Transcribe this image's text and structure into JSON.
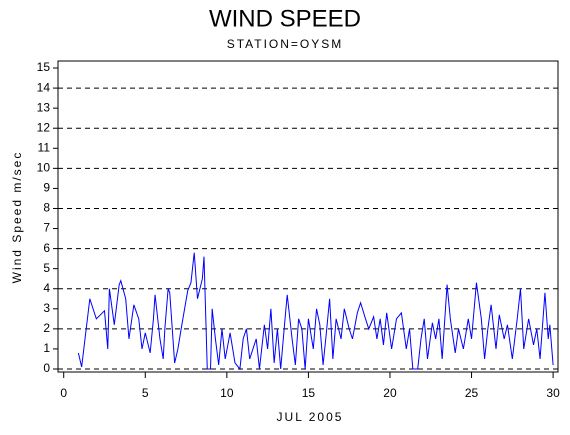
{
  "chart_data": {
    "type": "line",
    "title": "WIND SPEED",
    "subtitle": "STATION=OYSM",
    "x_label": "JUL 2005",
    "y_label": "Wind Speed m/sec",
    "xlim": [
      -0.35,
      30.3
    ],
    "ylim": [
      -0.15,
      15.35
    ],
    "xticks": [
      0,
      5,
      10,
      15,
      20,
      25,
      30
    ],
    "yticks": [
      0,
      1,
      2,
      3,
      4,
      5,
      6,
      7,
      8,
      9,
      10,
      11,
      12,
      13,
      14,
      15
    ],
    "ygrid": [
      0,
      2,
      4,
      6,
      8,
      10,
      12,
      14
    ],
    "series": [
      {
        "color": "#0000ff",
        "x": [
          0.9,
          1.1,
          1.6,
          2,
          2.5,
          2.7,
          2.8,
          3.1,
          3.4,
          3.5,
          3.8,
          4,
          4.3,
          4.6,
          4.8,
          5,
          5.3,
          5.5,
          5.6,
          5.9,
          6.1,
          6.2,
          6.4,
          6.5,
          6.8,
          7,
          7.2,
          7.6,
          7.8,
          8,
          8.2,
          8.5,
          8.6,
          8.8,
          9,
          9.1,
          9.3,
          9.5,
          9.7,
          9.9,
          10.2,
          10.5,
          10.8,
          11,
          11.2,
          11.4,
          11.8,
          12,
          12.3,
          12.5,
          12.7,
          12.9,
          13.1,
          13.3,
          13.6,
          13.7,
          14,
          14.2,
          14.4,
          14.6,
          14.8,
          15,
          15.3,
          15.5,
          15.7,
          15.9,
          16.1,
          16.3,
          16.5,
          16.7,
          17,
          17.2,
          17.5,
          17.7,
          18,
          18.2,
          18.5,
          18.7,
          19,
          19.2,
          19.4,
          19.6,
          19.8,
          20.1,
          20.4,
          20.7,
          21,
          21.2,
          21.4,
          21.7,
          21.9,
          22.1,
          22.3,
          22.6,
          22.8,
          23,
          23.2,
          23.5,
          23.7,
          24,
          24.2,
          24.5,
          24.8,
          25,
          25.3,
          25.6,
          25.8,
          26,
          26.2,
          26.5,
          26.7,
          27,
          27.2,
          27.5,
          27.8,
          28,
          28.2,
          28.5,
          28.8,
          29,
          29.2,
          29.5,
          29.7,
          29.8,
          30
        ],
        "values": [
          0.8,
          0.1,
          3.5,
          2.5,
          2.9,
          1,
          4,
          2.2,
          4.2,
          4.4,
          3.5,
          1.5,
          3.2,
          2.5,
          1,
          1.8,
          0.8,
          2.5,
          3.7,
          1.5,
          0.5,
          2,
          4,
          3.8,
          0.3,
          1,
          2,
          3.9,
          4.3,
          5.8,
          3.5,
          4.5,
          5.6,
          0,
          0,
          3,
          1.5,
          0.2,
          2,
          0.5,
          1.8,
          0.3,
          0,
          1.5,
          2,
          0.5,
          1.5,
          0,
          2.2,
          1,
          3,
          0.3,
          2,
          0,
          2.8,
          3.7,
          1.5,
          0.2,
          2.5,
          2,
          0,
          2.5,
          1,
          3,
          2.2,
          0.2,
          1.8,
          3.5,
          0.5,
          2.5,
          1.5,
          3,
          2,
          1.5,
          2.8,
          3.3,
          2.5,
          2,
          2.6,
          1.5,
          2.5,
          1.2,
          2.8,
          1,
          2.5,
          2.8,
          1,
          2,
          0,
          0,
          1.5,
          2.5,
          0.5,
          2.3,
          1.5,
          2.5,
          0.5,
          4.2,
          2.5,
          0.8,
          2,
          1,
          2.5,
          1.5,
          4.3,
          2.5,
          0.5,
          2,
          3.2,
          1,
          2.7,
          1.5,
          2.2,
          0.5,
          2.5,
          4,
          1,
          2.5,
          1.2,
          2,
          0.5,
          3.8,
          1.5,
          2.2,
          0.2
        ]
      }
    ]
  }
}
